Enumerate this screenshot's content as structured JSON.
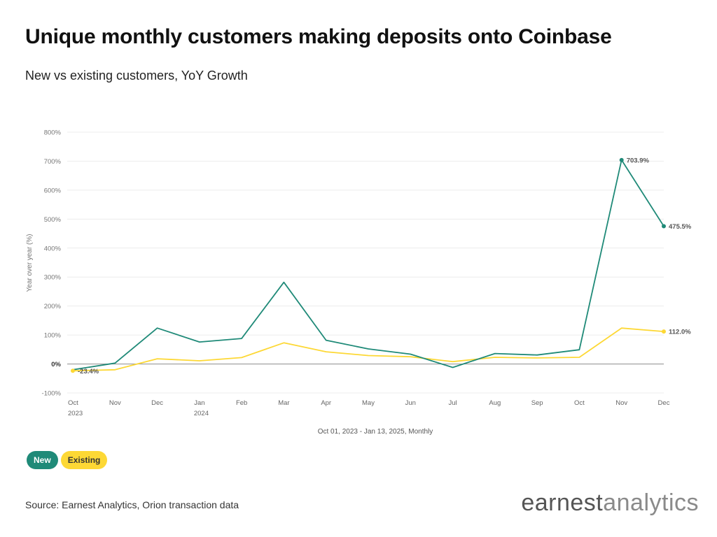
{
  "title": "Unique monthly customers making deposits onto Coinbase",
  "subtitle": "New vs existing customers, YoY Growth",
  "source": "Source: Earnest Analytics, Orion transaction data",
  "brand": {
    "part1": "earnest",
    "part2": "analytics"
  },
  "legend": {
    "new": "New",
    "existing": "Existing"
  },
  "colors": {
    "new": "#1f8a78",
    "existing": "#fdd835"
  },
  "chart_data": {
    "type": "line",
    "categories": [
      "Oct",
      "Nov",
      "Dec",
      "Jan",
      "Feb",
      "Mar",
      "Apr",
      "May",
      "Jun",
      "Jul",
      "Aug",
      "Sep",
      "Oct",
      "Nov",
      "Dec"
    ],
    "year_labels": [
      "2023",
      "",
      "",
      "2024",
      "",
      "",
      "",
      "",
      "",
      "",
      "",
      "",
      "",
      "",
      ""
    ],
    "series": [
      {
        "name": "New",
        "color": "#1f8a78",
        "values": [
          -20,
          3,
          124,
          76,
          88,
          282,
          82,
          52,
          34,
          -12,
          36,
          31,
          49,
          703.9,
          475.5
        ]
      },
      {
        "name": "Existing",
        "color": "#fdd835",
        "values": [
          -23.4,
          -20,
          18,
          11,
          22,
          73,
          42,
          29,
          25,
          8,
          23,
          21,
          23,
          124,
          112.0
        ]
      }
    ],
    "data_labels": [
      {
        "series": "New",
        "index": 13,
        "text": "703.9%"
      },
      {
        "series": "New",
        "index": 14,
        "text": "475.5%"
      },
      {
        "series": "Existing",
        "index": 14,
        "text": "112.0%"
      },
      {
        "series": "Existing",
        "index": 0,
        "text": "-23.4%"
      }
    ],
    "yticks": [
      -100,
      0,
      100,
      200,
      300,
      400,
      500,
      600,
      700,
      800
    ],
    "ytick_labels": [
      "-100%",
      "0%",
      "100%",
      "200%",
      "300%",
      "400%",
      "500%",
      "600%",
      "700%",
      "800%"
    ],
    "ylim": [
      -100,
      800
    ],
    "xlabel": "Oct 01, 2023 - Jan 13, 2025, Monthly",
    "ylabel": "Year over year (%)",
    "legend_position": "bottom-left",
    "grid": true
  }
}
